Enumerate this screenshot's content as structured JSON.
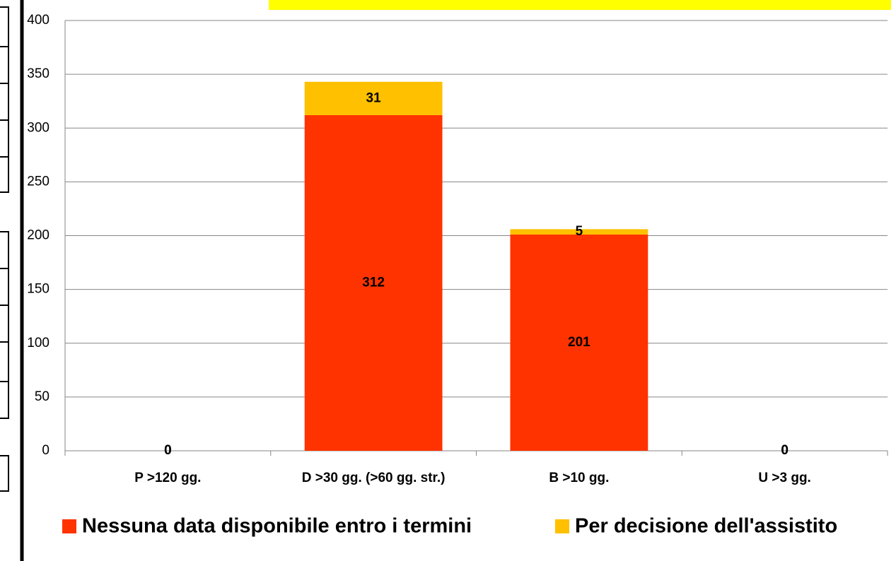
{
  "chart_data": {
    "type": "stacked_bar",
    "categories": [
      "P >120 gg.",
      "D >30 gg. (>60 gg. str.)",
      "B >10 gg.",
      "U >3 gg."
    ],
    "series": [
      {
        "name": "Nessuna data disponibile entro i termini",
        "color": "#ff3300",
        "values": [
          0,
          312,
          201,
          0
        ]
      },
      {
        "name": "Per decisione dell'assistito",
        "color": "#ffc000",
        "values": [
          0,
          31,
          5,
          0
        ]
      }
    ],
    "ylim": [
      0,
      400
    ],
    "yticks": [
      0,
      50,
      100,
      150,
      200,
      250,
      300,
      350,
      400
    ],
    "grid": true,
    "legend": "bottom"
  }
}
